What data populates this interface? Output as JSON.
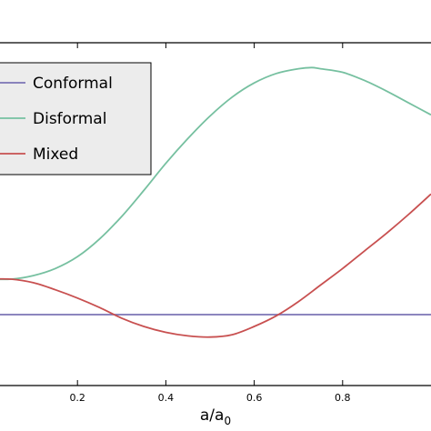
{
  "chart_data": {
    "type": "line",
    "xlabel": "a/a",
    "xlabel_subscript": "0",
    "ylabel": "",
    "xlim": [
      0.0,
      1.0
    ],
    "ylim": [
      -0.6,
      2.3
    ],
    "x_ticks": [
      0.2,
      0.4,
      0.6,
      0.8
    ],
    "x_tick_labels": [
      "0.2",
      "0.4",
      "0.6",
      "0.8"
    ],
    "grid": false,
    "legend_position": "upper-left",
    "series": [
      {
        "name": "Conformal",
        "color": "#7b74b5",
        "x": [
          0.0,
          0.1,
          0.2,
          0.3,
          0.4,
          0.5,
          0.6,
          0.7,
          0.8,
          0.9,
          1.0
        ],
        "y": [
          0.0,
          0.0,
          0.0,
          0.0,
          0.0,
          0.0,
          0.0,
          0.0,
          0.0,
          0.0,
          0.0
        ]
      },
      {
        "name": "Disformal",
        "color": "#76c0a0",
        "x": [
          0.0,
          0.05,
          0.1,
          0.15,
          0.2,
          0.25,
          0.3,
          0.35,
          0.4,
          0.45,
          0.5,
          0.55,
          0.6,
          0.65,
          0.7,
          0.73,
          0.75,
          0.8,
          0.85,
          0.9,
          0.95,
          1.0
        ],
        "y": [
          0.3,
          0.3,
          0.33,
          0.39,
          0.49,
          0.64,
          0.83,
          1.05,
          1.28,
          1.49,
          1.68,
          1.84,
          1.96,
          2.04,
          2.08,
          2.09,
          2.08,
          2.05,
          1.98,
          1.89,
          1.79,
          1.69
        ]
      },
      {
        "name": "Mixed",
        "color": "#c85050",
        "x": [
          0.0,
          0.05,
          0.1,
          0.15,
          0.2,
          0.25,
          0.3,
          0.35,
          0.4,
          0.45,
          0.5,
          0.55,
          0.6,
          0.65,
          0.7,
          0.75,
          0.8,
          0.85,
          0.9,
          0.95,
          1.0
        ],
        "y": [
          0.3,
          0.3,
          0.27,
          0.21,
          0.14,
          0.06,
          -0.03,
          -0.1,
          -0.15,
          -0.18,
          -0.19,
          -0.17,
          -0.1,
          -0.01,
          0.11,
          0.25,
          0.39,
          0.54,
          0.69,
          0.85,
          1.02
        ]
      }
    ]
  }
}
